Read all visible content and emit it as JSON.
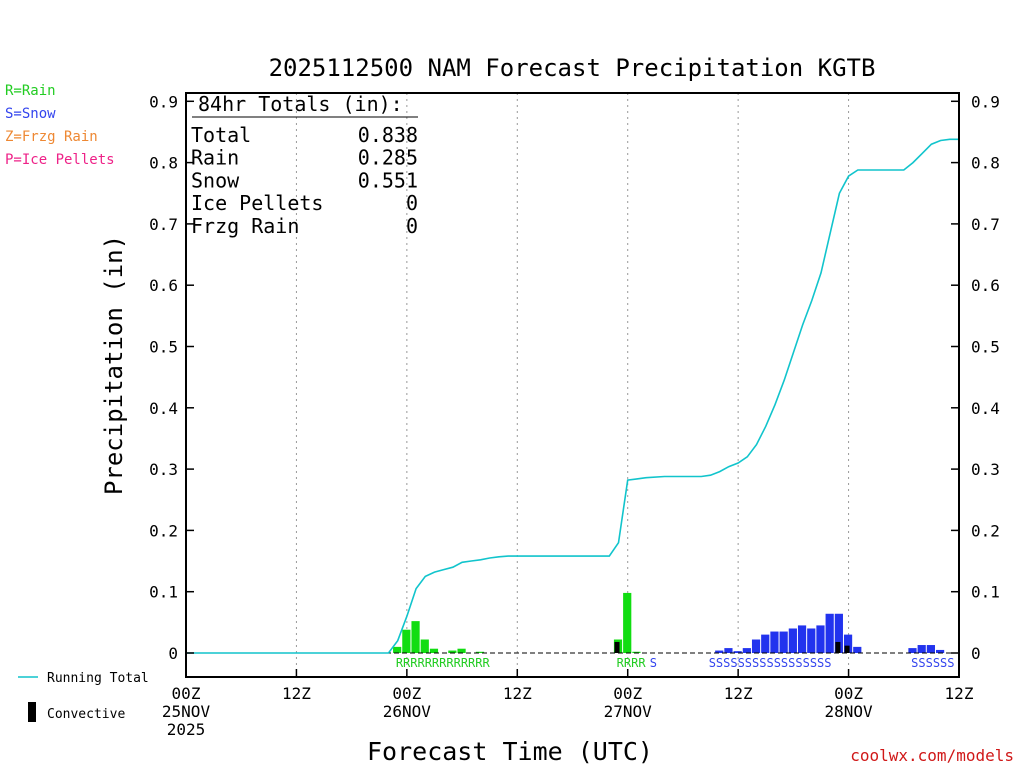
{
  "chart_data": {
    "type": "bar",
    "title": "2025112500 NAM Forecast Precipitation KGTB",
    "xlabel": "Forecast Time (UTC)",
    "ylabel": "Precipitation (in)",
    "ylim": [
      0,
      0.9
    ],
    "xlim_hours": [
      0,
      84
    ],
    "yticks": [
      "0",
      "0.1",
      "0.2",
      "0.3",
      "0.4",
      "0.5",
      "0.6",
      "0.7",
      "0.8",
      "0.9"
    ],
    "xticks": [
      {
        "hour": 0,
        "lines": [
          "00Z",
          "25NOV",
          "2025"
        ]
      },
      {
        "hour": 12,
        "lines": [
          "12Z"
        ]
      },
      {
        "hour": 24,
        "lines": [
          "00Z",
          "26NOV"
        ]
      },
      {
        "hour": 36,
        "lines": [
          "12Z"
        ]
      },
      {
        "hour": 48,
        "lines": [
          "00Z",
          "27NOV"
        ]
      },
      {
        "hour": 60,
        "lines": [
          "12Z"
        ]
      },
      {
        "hour": 72,
        "lines": [
          "00Z",
          "28NOV"
        ]
      },
      {
        "hour": 84,
        "lines": [
          "12Z"
        ]
      }
    ],
    "grid": "vertical dotted at 12Z/00Z",
    "type_legend": [
      {
        "text": "R=Rain",
        "color": "#22cc22"
      },
      {
        "text": "S=Snow",
        "color": "#3344ee"
      },
      {
        "text": "Z=Frzg Rain",
        "color": "#ee8833"
      },
      {
        "text": "P=Ice Pellets",
        "color": "#ee2288"
      }
    ],
    "series_legend": {
      "line": "Running Total",
      "bar": "Convective"
    },
    "totals_box": {
      "heading": "84hr Totals (in):",
      "rows": [
        {
          "label": "Total",
          "value": "0.838"
        },
        {
          "label": "Rain",
          "value": "0.285"
        },
        {
          "label": "Snow",
          "value": "0.551"
        },
        {
          "label": "Ice Pellets",
          "value": "0"
        },
        {
          "label": "Frzg Rain",
          "value": "0"
        }
      ]
    },
    "type_strings": [
      {
        "text": "RRRRRRRRRRRRR",
        "start_hour": 22.8,
        "color": "#22cc22"
      },
      {
        "text": "RRRR",
        "start_hour": 46.8,
        "color": "#22cc22"
      },
      {
        "text": "S",
        "start_hour": 50.4,
        "color": "#3344ee"
      },
      {
        "text": "SSSSSSSSSSSSSSSSS",
        "start_hour": 56.8,
        "color": "#3344ee"
      },
      {
        "text": "SSSSSS",
        "start_hour": 78.8,
        "color": "#3344ee"
      }
    ],
    "colors": {
      "rain": "#11dd11",
      "snow": "#2233ee",
      "convective": "#000000",
      "running_total": "#11c4cc"
    },
    "bars": [
      {
        "hour": 23,
        "value": 0.01,
        "kind": "rain"
      },
      {
        "hour": 24,
        "value": 0.038,
        "kind": "rain"
      },
      {
        "hour": 25,
        "value": 0.052,
        "kind": "rain"
      },
      {
        "hour": 26,
        "value": 0.022,
        "kind": "rain"
      },
      {
        "hour": 27,
        "value": 0.007,
        "kind": "rain"
      },
      {
        "hour": 29,
        "value": 0.004,
        "kind": "rain"
      },
      {
        "hour": 30,
        "value": 0.007,
        "kind": "rain"
      },
      {
        "hour": 32,
        "value": 0.002,
        "kind": "rain"
      },
      {
        "hour": 47,
        "value": 0.022,
        "kind": "rain"
      },
      {
        "hour": 48,
        "value": 0.098,
        "kind": "rain"
      },
      {
        "hour": 49,
        "value": 0.002,
        "kind": "rain"
      },
      {
        "hour": 58,
        "value": 0.004,
        "kind": "snow"
      },
      {
        "hour": 59,
        "value": 0.008,
        "kind": "snow"
      },
      {
        "hour": 60,
        "value": 0.003,
        "kind": "snow"
      },
      {
        "hour": 61,
        "value": 0.008,
        "kind": "snow"
      },
      {
        "hour": 62,
        "value": 0.022,
        "kind": "snow"
      },
      {
        "hour": 63,
        "value": 0.03,
        "kind": "snow"
      },
      {
        "hour": 64,
        "value": 0.035,
        "kind": "snow"
      },
      {
        "hour": 65,
        "value": 0.035,
        "kind": "snow"
      },
      {
        "hour": 66,
        "value": 0.04,
        "kind": "snow"
      },
      {
        "hour": 67,
        "value": 0.045,
        "kind": "snow"
      },
      {
        "hour": 68,
        "value": 0.04,
        "kind": "snow"
      },
      {
        "hour": 69,
        "value": 0.045,
        "kind": "snow"
      },
      {
        "hour": 70,
        "value": 0.064,
        "kind": "snow"
      },
      {
        "hour": 71,
        "value": 0.064,
        "kind": "snow"
      },
      {
        "hour": 72,
        "value": 0.03,
        "kind": "snow"
      },
      {
        "hour": 73,
        "value": 0.01,
        "kind": "snow"
      },
      {
        "hour": 79,
        "value": 0.008,
        "kind": "snow"
      },
      {
        "hour": 80,
        "value": 0.013,
        "kind": "snow"
      },
      {
        "hour": 81,
        "value": 0.013,
        "kind": "snow"
      },
      {
        "hour": 82,
        "value": 0.005,
        "kind": "snow"
      }
    ],
    "convective_bars": [
      {
        "hour": 47,
        "value": 0.018
      },
      {
        "hour": 71,
        "value": 0.018
      },
      {
        "hour": 72,
        "value": 0.012
      }
    ],
    "running_total": {
      "x": [
        0,
        22,
        23,
        24,
        25,
        26,
        27,
        28,
        29,
        30,
        31,
        32,
        33,
        34,
        35,
        36,
        38,
        40,
        42,
        44,
        46,
        47,
        48,
        49,
        50,
        52,
        54,
        56,
        57,
        58,
        59,
        60,
        61,
        62,
        63,
        64,
        65,
        66,
        67,
        68,
        69,
        70,
        71,
        72,
        73,
        74,
        75,
        76,
        77,
        78,
        79,
        80,
        81,
        82,
        83,
        84
      ],
      "y": [
        0,
        0,
        0.02,
        0.06,
        0.105,
        0.125,
        0.132,
        0.136,
        0.14,
        0.148,
        0.15,
        0.152,
        0.155,
        0.157,
        0.158,
        0.158,
        0.158,
        0.158,
        0.158,
        0.158,
        0.158,
        0.18,
        0.282,
        0.284,
        0.286,
        0.288,
        0.288,
        0.288,
        0.29,
        0.296,
        0.304,
        0.31,
        0.32,
        0.34,
        0.37,
        0.405,
        0.445,
        0.49,
        0.535,
        0.575,
        0.62,
        0.685,
        0.75,
        0.778,
        0.788,
        0.788,
        0.788,
        0.788,
        0.788,
        0.788,
        0.8,
        0.815,
        0.83,
        0.836,
        0.838,
        0.838
      ]
    }
  },
  "footer": {
    "credit": "coolwx.com/models"
  }
}
